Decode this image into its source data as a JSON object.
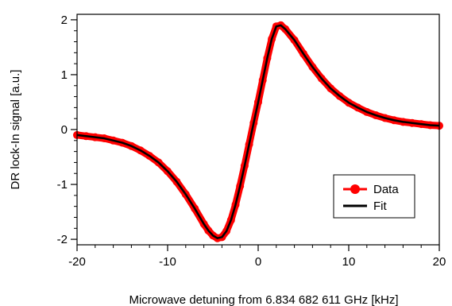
{
  "chart_data": {
    "type": "scatter",
    "xlabel": "Microwave detuning from 6.834 682 611 GHz [kHz]",
    "ylabel": "DR lock-In signal [a.u.]",
    "xlim": [
      -20,
      20
    ],
    "ylim": [
      -2.1,
      2.1
    ],
    "x_ticks": [
      -20,
      -10,
      0,
      10,
      20
    ],
    "y_ticks": [
      -2,
      -1,
      0,
      1,
      2
    ],
    "grid": false,
    "legend_position": "lower-right",
    "series": [
      {
        "name": "Data",
        "style": "markers",
        "color": "#ff0000",
        "x": [
          -20,
          -19,
          -18,
          -17,
          -16,
          -15,
          -14,
          -13,
          -12,
          -11,
          -10,
          -9,
          -8,
          -7,
          -6,
          -5.5,
          -5,
          -4.5,
          -4,
          -3.5,
          -3,
          -2.5,
          -2,
          -1.5,
          -1,
          -0.5,
          0,
          0.5,
          1,
          1.5,
          2,
          2.5,
          3,
          4,
          5,
          6,
          7,
          8,
          9,
          10,
          11,
          12,
          13,
          14,
          15,
          16,
          17,
          18,
          19,
          20
        ],
        "y": [
          -0.1,
          -0.12,
          -0.14,
          -0.16,
          -0.2,
          -0.24,
          -0.3,
          -0.38,
          -0.48,
          -0.6,
          -0.76,
          -0.95,
          -1.18,
          -1.44,
          -1.72,
          -1.84,
          -1.93,
          -1.98,
          -1.96,
          -1.85,
          -1.65,
          -1.37,
          -1.03,
          -0.66,
          -0.27,
          0.12,
          0.5,
          0.9,
          1.3,
          1.65,
          1.88,
          1.9,
          1.83,
          1.63,
          1.38,
          1.14,
          0.93,
          0.75,
          0.61,
          0.49,
          0.4,
          0.32,
          0.26,
          0.21,
          0.17,
          0.14,
          0.12,
          0.1,
          0.08,
          0.07
        ]
      },
      {
        "name": "Fit",
        "style": "line",
        "color": "#000000",
        "x": [
          -20,
          -19,
          -18,
          -17,
          -16,
          -15,
          -14,
          -13,
          -12,
          -11,
          -10,
          -9,
          -8,
          -7,
          -6,
          -5.5,
          -5,
          -4.5,
          -4,
          -3.5,
          -3,
          -2.5,
          -2,
          -1.5,
          -1,
          -0.5,
          0,
          0.5,
          1,
          1.5,
          2,
          2.5,
          3,
          4,
          5,
          6,
          7,
          8,
          9,
          10,
          11,
          12,
          13,
          14,
          15,
          16,
          17,
          18,
          19,
          20
        ],
        "y": [
          -0.1,
          -0.12,
          -0.14,
          -0.16,
          -0.2,
          -0.24,
          -0.3,
          -0.38,
          -0.48,
          -0.6,
          -0.76,
          -0.95,
          -1.18,
          -1.44,
          -1.72,
          -1.84,
          -1.93,
          -1.98,
          -1.96,
          -1.85,
          -1.65,
          -1.37,
          -1.03,
          -0.66,
          -0.27,
          0.12,
          0.5,
          0.9,
          1.3,
          1.65,
          1.88,
          1.9,
          1.83,
          1.63,
          1.38,
          1.14,
          0.93,
          0.75,
          0.61,
          0.49,
          0.4,
          0.32,
          0.26,
          0.21,
          0.17,
          0.14,
          0.12,
          0.1,
          0.08,
          0.07
        ]
      }
    ]
  }
}
